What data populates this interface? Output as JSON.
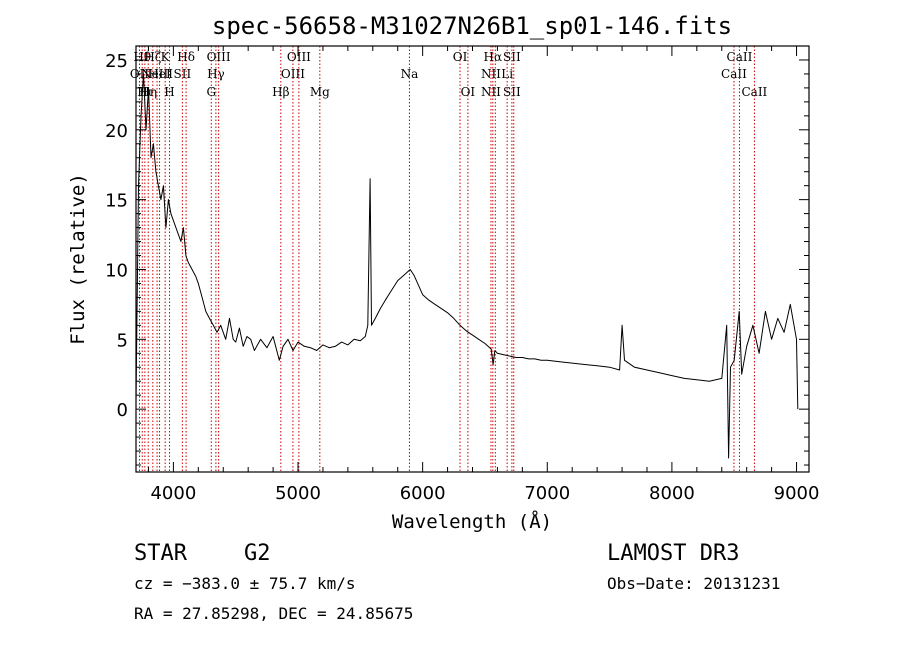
{
  "chart_data": {
    "type": "line",
    "title": "spec-56658-M31027N26B1_sp01-146.fits",
    "xlabel": "Wavelength (Å)",
    "ylabel": "Flux (relative)",
    "xlim": [
      3700,
      9100
    ],
    "ylim": [
      -4.5,
      26
    ],
    "xticks": [
      4000,
      5000,
      6000,
      7000,
      8000,
      9000
    ],
    "yticks": [
      0,
      5,
      10,
      15,
      20,
      25
    ],
    "grid": false,
    "line_color": "#000000",
    "marker_line_color": "#cc0000",
    "series": [
      {
        "points": [
          [
            3700,
            0.5
          ],
          [
            3720,
            16
          ],
          [
            3740,
            21
          ],
          [
            3760,
            24
          ],
          [
            3780,
            20
          ],
          [
            3800,
            23
          ],
          [
            3820,
            18
          ],
          [
            3840,
            19
          ],
          [
            3860,
            17
          ],
          [
            3880,
            16
          ],
          [
            3900,
            15
          ],
          [
            3920,
            16
          ],
          [
            3940,
            13
          ],
          [
            3960,
            15
          ],
          [
            3980,
            14
          ],
          [
            4000,
            13.5
          ],
          [
            4020,
            13
          ],
          [
            4040,
            12.5
          ],
          [
            4060,
            12
          ],
          [
            4080,
            13
          ],
          [
            4100,
            11
          ],
          [
            4120,
            10.5
          ],
          [
            4150,
            10
          ],
          [
            4180,
            9.5
          ],
          [
            4200,
            9
          ],
          [
            4230,
            8
          ],
          [
            4260,
            7
          ],
          [
            4290,
            6.5
          ],
          [
            4320,
            6
          ],
          [
            4350,
            5.5
          ],
          [
            4380,
            6
          ],
          [
            4420,
            5
          ],
          [
            4450,
            6.5
          ],
          [
            4480,
            5
          ],
          [
            4500,
            4.8
          ],
          [
            4530,
            5.8
          ],
          [
            4560,
            4.5
          ],
          [
            4590,
            5.2
          ],
          [
            4620,
            5
          ],
          [
            4650,
            4.2
          ],
          [
            4700,
            5
          ],
          [
            4750,
            4.4
          ],
          [
            4800,
            5.2
          ],
          [
            4850,
            3.5
          ],
          [
            4880,
            4.5
          ],
          [
            4920,
            5
          ],
          [
            4960,
            4.2
          ],
          [
            5000,
            4.8
          ],
          [
            5050,
            4.5
          ],
          [
            5100,
            4.4
          ],
          [
            5150,
            4.2
          ],
          [
            5200,
            4.6
          ],
          [
            5250,
            4.4
          ],
          [
            5300,
            4.5
          ],
          [
            5350,
            4.8
          ],
          [
            5400,
            4.6
          ],
          [
            5450,
            5
          ],
          [
            5500,
            4.9
          ],
          [
            5540,
            5.2
          ],
          [
            5560,
            6
          ],
          [
            5578,
            16.5
          ],
          [
            5590,
            6
          ],
          [
            5620,
            6.5
          ],
          [
            5660,
            7.2
          ],
          [
            5700,
            7.8
          ],
          [
            5750,
            8.5
          ],
          [
            5800,
            9.2
          ],
          [
            5850,
            9.6
          ],
          [
            5900,
            10
          ],
          [
            5930,
            9.6
          ],
          [
            5970,
            8.8
          ],
          [
            6000,
            8.2
          ],
          [
            6050,
            7.8
          ],
          [
            6100,
            7.5
          ],
          [
            6150,
            7.2
          ],
          [
            6200,
            6.9
          ],
          [
            6250,
            6.5
          ],
          [
            6300,
            6
          ],
          [
            6350,
            5.6
          ],
          [
            6400,
            5.3
          ],
          [
            6450,
            5
          ],
          [
            6500,
            4.7
          ],
          [
            6550,
            4.3
          ],
          [
            6565,
            3.2
          ],
          [
            6580,
            4.2
          ],
          [
            6600,
            4
          ],
          [
            6650,
            3.9
          ],
          [
            6700,
            3.8
          ],
          [
            6750,
            3.7
          ],
          [
            6800,
            3.7
          ],
          [
            6850,
            3.6
          ],
          [
            6900,
            3.6
          ],
          [
            6950,
            3.5
          ],
          [
            7000,
            3.5
          ],
          [
            7100,
            3.4
          ],
          [
            7200,
            3.3
          ],
          [
            7300,
            3.2
          ],
          [
            7400,
            3.1
          ],
          [
            7500,
            3
          ],
          [
            7580,
            2.8
          ],
          [
            7600,
            6
          ],
          [
            7620,
            3.5
          ],
          [
            7700,
            3
          ],
          [
            7800,
            2.8
          ],
          [
            7900,
            2.6
          ],
          [
            8000,
            2.4
          ],
          [
            8100,
            2.2
          ],
          [
            8200,
            2.1
          ],
          [
            8300,
            2
          ],
          [
            8400,
            2.2
          ],
          [
            8440,
            6
          ],
          [
            8455,
            -3.5
          ],
          [
            8470,
            3
          ],
          [
            8500,
            3.5
          ],
          [
            8540,
            7
          ],
          [
            8560,
            2.5
          ],
          [
            8600,
            4.5
          ],
          [
            8650,
            6
          ],
          [
            8700,
            4
          ],
          [
            8750,
            7
          ],
          [
            8800,
            5
          ],
          [
            8850,
            6.5
          ],
          [
            8900,
            5.5
          ],
          [
            8950,
            7.5
          ],
          [
            9000,
            5
          ],
          [
            9010,
            0
          ]
        ]
      }
    ],
    "line_markers": [
      {
        "wavelength": 3728,
        "labels": [
          {
            "text": "OII",
            "row": 2
          }
        ]
      },
      {
        "wavelength": 3750,
        "labels": [
          {
            "text": "Hθ",
            "row": 1
          }
        ]
      },
      {
        "wavelength": 3771,
        "labels": [
          {
            "text": "Hι",
            "row": 3
          }
        ]
      },
      {
        "wavelength": 3798,
        "labels": [
          {
            "text": "Hη",
            "row": 3
          }
        ]
      },
      {
        "wavelength": 3835,
        "labels": [
          {
            "text": "Hζ",
            "row": 1
          }
        ]
      },
      {
        "wavelength": 3869,
        "labels": [
          {
            "text": "NeIII",
            "row": 2
          }
        ]
      },
      {
        "wavelength": 3889,
        "labels": [
          {
            "text": "HeI",
            "row": 2
          }
        ]
      },
      {
        "wavelength": 3934,
        "labels": [
          {
            "text": "K",
            "row": 1
          }
        ]
      },
      {
        "wavelength": 3969,
        "labels": [
          {
            "text": "H",
            "row": 3
          }
        ]
      },
      {
        "wavelength": 4072,
        "labels": [
          {
            "text": "SII",
            "row": 2
          }
        ]
      },
      {
        "wavelength": 4102,
        "labels": [
          {
            "text": "Hδ",
            "row": 1
          }
        ]
      },
      {
        "wavelength": 4304,
        "labels": [
          {
            "text": "G",
            "row": 3
          }
        ]
      },
      {
        "wavelength": 4341,
        "labels": [
          {
            "text": "Hγ",
            "row": 2
          }
        ]
      },
      {
        "wavelength": 4363,
        "labels": [
          {
            "text": "OIII",
            "row": 1
          }
        ]
      },
      {
        "wavelength": 4862,
        "labels": [
          {
            "text": "Hβ",
            "row": 3
          }
        ]
      },
      {
        "wavelength": 4959,
        "labels": [
          {
            "text": "OIII",
            "row": 2
          }
        ]
      },
      {
        "wavelength": 5007,
        "labels": [
          {
            "text": "OIII",
            "row": 1
          }
        ]
      },
      {
        "wavelength": 5175,
        "labels": [
          {
            "text": "Mg",
            "row": 3
          }
        ]
      },
      {
        "wavelength": 5894,
        "labels": [
          {
            "text": "Na",
            "row": 2
          }
        ]
      },
      {
        "wavelength": 6300,
        "labels": [
          {
            "text": "OI",
            "row": 1
          }
        ]
      },
      {
        "wavelength": 6363,
        "labels": [
          {
            "text": "OI",
            "row": 3
          }
        ]
      },
      {
        "wavelength": 6548,
        "labels": [
          {
            "text": "NII",
            "row": 2
          },
          {
            "text": "NII",
            "row": 3
          }
        ]
      },
      {
        "wavelength": 6563,
        "labels": [
          {
            "text": "Hα",
            "row": 1
          }
        ]
      },
      {
        "wavelength": 6583,
        "labels": []
      },
      {
        "wavelength": 6678,
        "labels": [
          {
            "text": "Li",
            "row": 2
          }
        ]
      },
      {
        "wavelength": 6716,
        "labels": [
          {
            "text": "SII",
            "row": 1
          },
          {
            "text": "SII",
            "row": 3
          }
        ]
      },
      {
        "wavelength": 6731,
        "labels": []
      },
      {
        "wavelength": 8498,
        "labels": [
          {
            "text": "CaII",
            "row": 2
          }
        ]
      },
      {
        "wavelength": 8542,
        "labels": [
          {
            "text": "CaII",
            "row": 1
          }
        ]
      },
      {
        "wavelength": 8662,
        "labels": [
          {
            "text": "CaII",
            "row": 3
          }
        ]
      }
    ]
  },
  "info": {
    "class": "STAR",
    "subclass": "G2",
    "survey": "LAMOST DR3",
    "cz": "cz = −383.0 ± 75.7 km/s",
    "obs_date": "Obs−Date: 20131231",
    "radec": "RA =  27.85298, DEC =  24.85675"
  }
}
